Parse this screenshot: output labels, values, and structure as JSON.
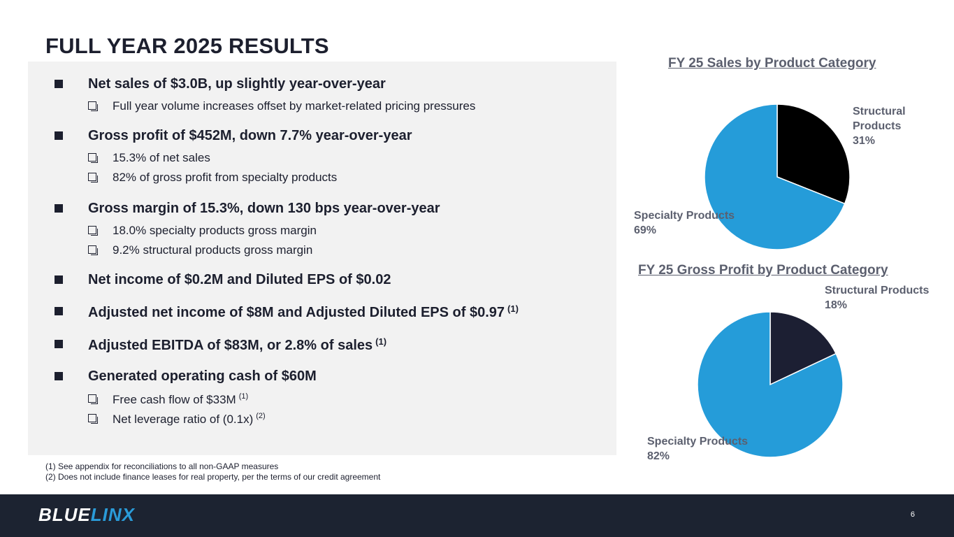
{
  "slide": {
    "title": "FULL YEAR 2025 RESULTS",
    "page_number": "6"
  },
  "bullets": [
    {
      "text": "Net sales of $3.0B, up slightly year-over-year",
      "note": "",
      "subs": [
        {
          "text": "Full year volume increases offset by market-related pricing pressures",
          "note": ""
        }
      ]
    },
    {
      "text": "Gross profit of $452M, down 7.7% year-over-year",
      "note": "",
      "subs": [
        {
          "text": "15.3% of net sales",
          "note": ""
        },
        {
          "text": "82% of gross profit from specialty products",
          "note": ""
        }
      ]
    },
    {
      "text": "Gross margin of 15.3%, down 130 bps year-over-year",
      "note": "",
      "subs": [
        {
          "text": "18.0% specialty products gross margin",
          "note": ""
        },
        {
          "text": "9.2% structural products gross margin",
          "note": ""
        }
      ]
    },
    {
      "text": "Net income of $0.2M and Diluted EPS of $0.02",
      "note": "",
      "subs": []
    },
    {
      "text": "Adjusted net income of $8M and Adjusted Diluted EPS of $0.97",
      "note": "(1)",
      "subs": []
    },
    {
      "text": "Adjusted EBITDA of $83M, or 2.8% of sales",
      "note": "(1)",
      "subs": []
    },
    {
      "text": "Generated operating cash of $60M",
      "note": "",
      "subs": [
        {
          "text": "Free cash flow of $33M",
          "note": "(1)"
        },
        {
          "text": "Net leverage ratio of (0.1x)",
          "note": "(2)"
        }
      ]
    }
  ],
  "footnotes": [
    "(1)  See appendix for reconciliations to all non-GAAP measures",
    "(2)  Does not include finance leases for real property, per the terms of our credit agreement"
  ],
  "chart_data": [
    {
      "type": "pie",
      "title": "FY 25 Sales by Product Category",
      "slices": [
        {
          "label": "Structural Products",
          "value": 31,
          "display": "31%",
          "color": "#000000"
        },
        {
          "label": "Specialty Products",
          "value": 69,
          "display": "69%",
          "color": "#259cd9"
        }
      ]
    },
    {
      "type": "pie",
      "title": "FY 25 Gross Profit by Product Category",
      "slices": [
        {
          "label": "Structural Products",
          "value": 18,
          "display": "18%",
          "color": "#1c1f33"
        },
        {
          "label": "Specialty Products",
          "value": 82,
          "display": "82%",
          "color": "#259cd9"
        }
      ]
    }
  ],
  "footer": {
    "logo_part1": "BLUE",
    "logo_part2": "LINX",
    "background": "#1c2331"
  }
}
